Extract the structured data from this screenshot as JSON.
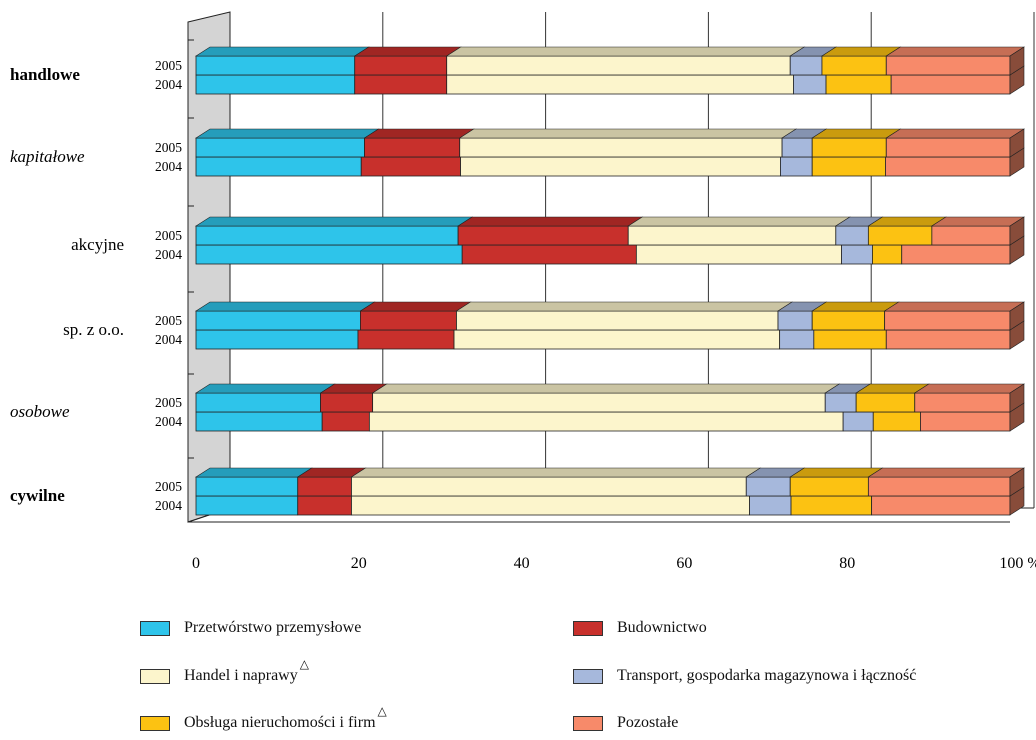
{
  "chart_data": {
    "type": "bar",
    "orientation": "horizontal",
    "stacked": "percent",
    "categories": [
      "handlowe",
      "kapitałowe",
      "akcyjne",
      "sp. z o.o.",
      "osobowe",
      "cywilne"
    ],
    "category_styles": [
      "bold",
      "italic",
      "normal",
      "normal",
      "italic",
      "bold"
    ],
    "years": [
      "2005",
      "2004"
    ],
    "x_ticks": [
      "0",
      "20",
      "40",
      "60",
      "80",
      "100 %"
    ],
    "xlim": [
      0,
      100
    ],
    "legend_position": "bottom",
    "series": [
      {
        "name": "Przetwórstwo przemysłowe",
        "color": "#2ec4ea",
        "values": {
          "2005": [
            19.5,
            20.7,
            32.2,
            20.2,
            15.3,
            12.5
          ],
          "2004": [
            19.5,
            20.3,
            32.7,
            19.9,
            15.5,
            12.5
          ]
        }
      },
      {
        "name": "Budownictwo",
        "color": "#c8302c",
        "values": {
          "2005": [
            11.3,
            11.7,
            20.9,
            11.8,
            6.4,
            6.6
          ],
          "2004": [
            11.3,
            12.2,
            21.4,
            11.8,
            5.8,
            6.6
          ]
        }
      },
      {
        "name": "Handel i naprawy",
        "marker": "△",
        "color": "#fcf5cc",
        "values": {
          "2005": [
            42.2,
            39.6,
            25.5,
            39.5,
            55.6,
            48.5
          ],
          "2004": [
            42.6,
            39.3,
            25.2,
            40.0,
            58.2,
            48.9
          ]
        }
      },
      {
        "name": "Transport, gospodarka magazynowa i łączność",
        "color": "#a6b8dc",
        "values": {
          "2005": [
            3.9,
            3.7,
            4.0,
            4.2,
            3.8,
            5.4
          ],
          "2004": [
            4.0,
            3.9,
            3.8,
            4.2,
            3.7,
            5.1
          ]
        }
      },
      {
        "name": "Obsługa nieruchomości i firm",
        "marker": "△",
        "color": "#fcc212",
        "values": {
          "2005": [
            7.9,
            9.1,
            7.8,
            8.9,
            7.2,
            9.6
          ],
          "2004": [
            8.0,
            9.0,
            3.6,
            8.9,
            5.8,
            9.9
          ]
        }
      },
      {
        "name": "Pozostałe",
        "color": "#f78a6a",
        "values": {
          "2005": [
            15.2,
            15.2,
            9.6,
            15.4,
            11.7,
            17.4
          ],
          "2004": [
            14.6,
            15.3,
            13.3,
            15.2,
            11.0,
            17.0
          ]
        }
      }
    ]
  }
}
